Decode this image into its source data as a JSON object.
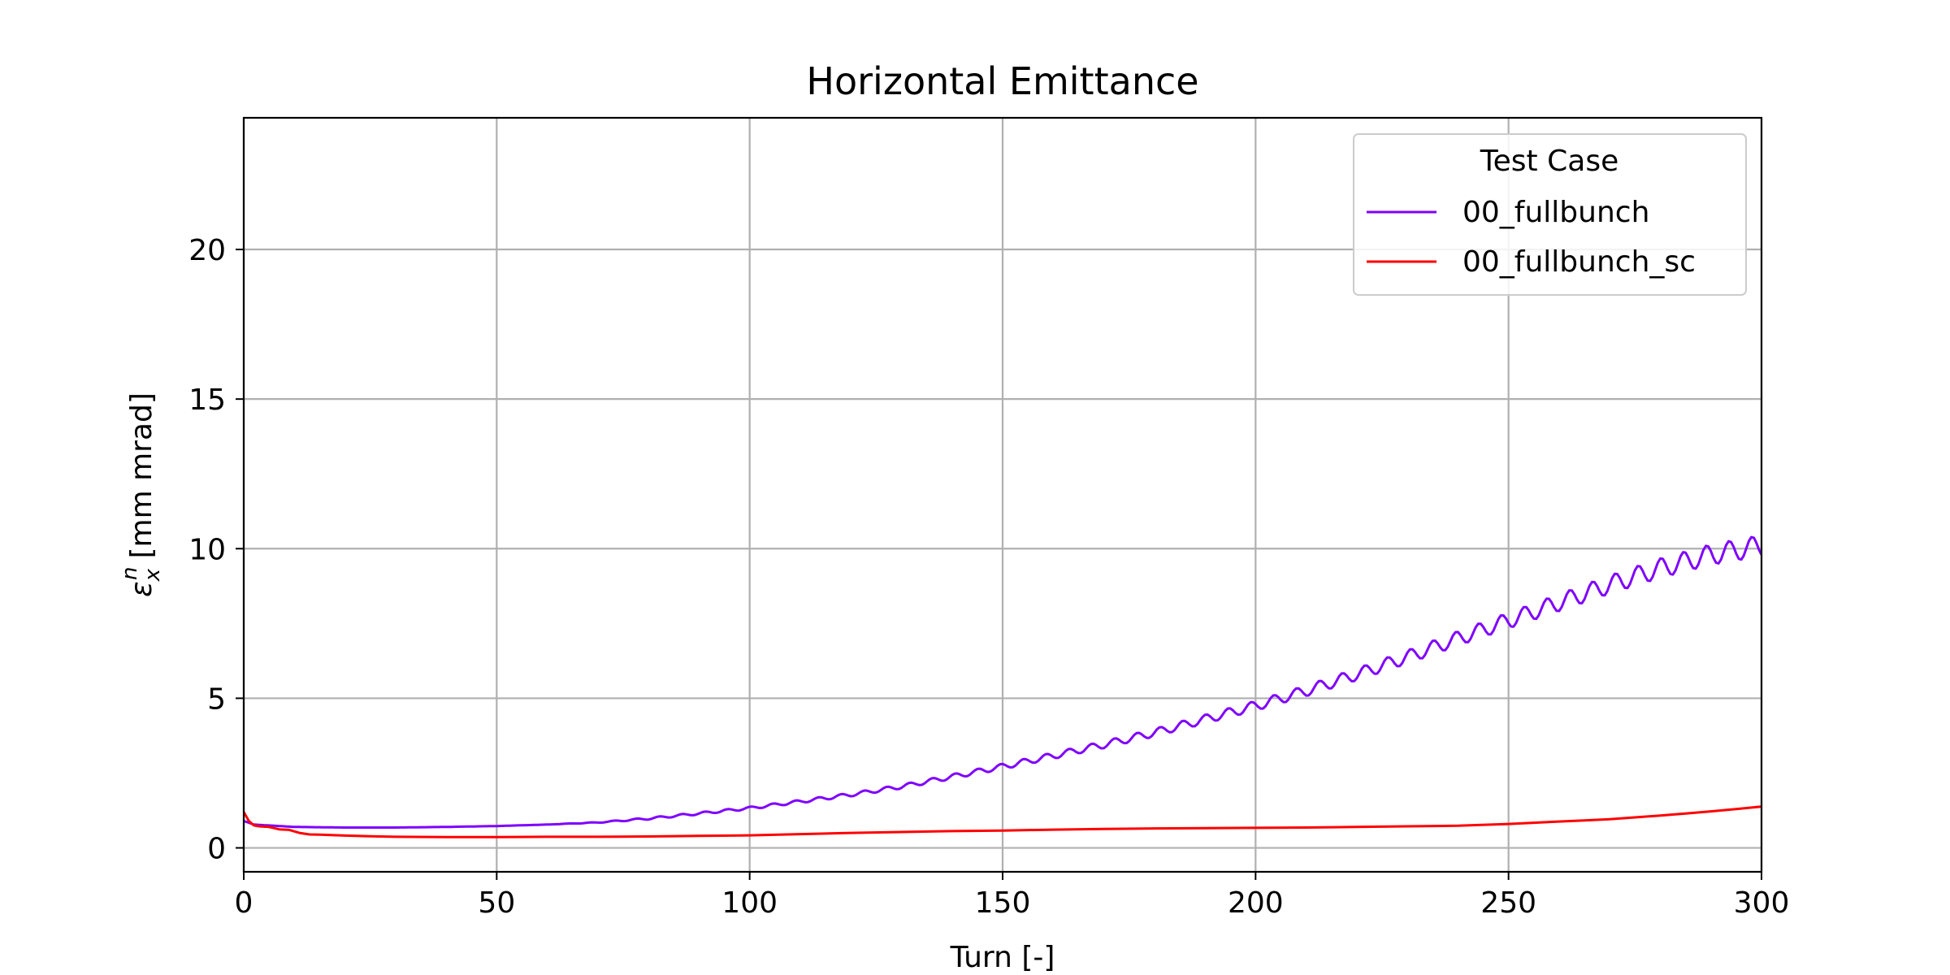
{
  "chart_data": {
    "type": "line",
    "title": "Horizontal Emittance",
    "xlabel": "Turn [-]",
    "ylabel": "[mm mrad]",
    "ylabel_symbol": "ε",
    "ylabel_sub": "x",
    "ylabel_sup": "n",
    "xlim": [
      0,
      300
    ],
    "ylim": [
      -0.8,
      24.4
    ],
    "xticks": [
      0,
      50,
      100,
      150,
      200,
      250,
      300
    ],
    "yticks": [
      0,
      5,
      10,
      15,
      20
    ],
    "grid": true,
    "legend": {
      "title": "Test Case",
      "position": "top-right"
    },
    "series": [
      {
        "name": "00_fullbunch",
        "color": "#7f00ff",
        "trend": {
          "x": [
            0,
            2,
            5,
            10,
            20,
            30,
            40,
            50,
            60,
            70,
            80,
            90,
            100,
            110,
            120,
            130,
            140,
            150,
            160,
            170,
            180,
            190,
            200,
            210,
            220,
            230,
            240,
            250,
            260,
            270,
            280,
            290,
            300
          ],
          "y": [
            0.9,
            0.78,
            0.75,
            0.7,
            0.68,
            0.68,
            0.7,
            0.73,
            0.78,
            0.85,
            0.98,
            1.15,
            1.33,
            1.55,
            1.78,
            2.05,
            2.38,
            2.72,
            3.08,
            3.45,
            3.85,
            4.3,
            4.75,
            5.25,
            5.8,
            6.38,
            7.0,
            7.6,
            8.2,
            8.8,
            9.35,
            9.8,
            10.1
          ]
        },
        "oscillation": {
          "period_turns": 4.5,
          "amplitude_fraction": 0.035,
          "start_turn": 60
        }
      },
      {
        "name": "00_fullbunch_sc",
        "color": "#ff0000",
        "x": [
          0,
          1,
          2,
          3,
          5,
          7,
          9,
          11,
          13,
          15,
          20,
          25,
          30,
          40,
          50,
          60,
          70,
          80,
          90,
          100,
          110,
          120,
          130,
          140,
          150,
          160,
          170,
          180,
          190,
          200,
          210,
          220,
          230,
          240,
          250,
          255,
          260,
          265,
          270,
          275,
          280,
          285,
          290,
          295,
          300
        ],
        "y": [
          1.2,
          0.9,
          0.75,
          0.72,
          0.7,
          0.62,
          0.6,
          0.5,
          0.45,
          0.44,
          0.41,
          0.39,
          0.37,
          0.36,
          0.36,
          0.37,
          0.37,
          0.38,
          0.4,
          0.42,
          0.46,
          0.5,
          0.53,
          0.56,
          0.58,
          0.61,
          0.63,
          0.65,
          0.66,
          0.67,
          0.68,
          0.7,
          0.72,
          0.74,
          0.8,
          0.84,
          0.88,
          0.92,
          0.96,
          1.02,
          1.08,
          1.15,
          1.22,
          1.3,
          1.38
        ]
      }
    ]
  }
}
